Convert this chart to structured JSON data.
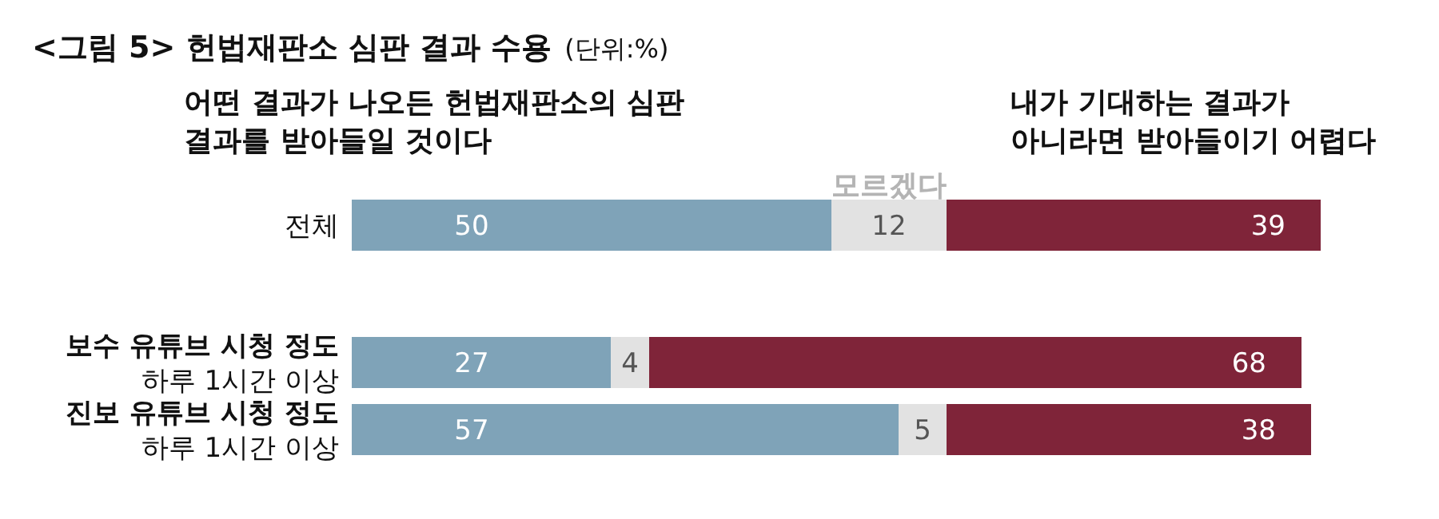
{
  "chart_data": {
    "type": "bar",
    "orientation": "horizontal",
    "stacked": true,
    "title": "<그림 5> 헌법재판소 심판 결과 수용",
    "subtitle": "(단위:%)",
    "categories": [
      "전체",
      "보수 유튜브 시청 정도\n하루 1시간 이상",
      "진보 유튜브 시청 정도\n하루 1시간 이상"
    ],
    "series": [
      {
        "name": "어떤 결과가 나오든 헌법재판소의 심판\n결과를 받아들일 것이다",
        "color": "#7fa3b8",
        "values": [
          50,
          27,
          57
        ]
      },
      {
        "name": "모르겠다",
        "color": "#e2e2e2",
        "values": [
          12,
          4,
          5
        ]
      },
      {
        "name": "내가 기대하는 결과가\n아니라면 받아들이기 어렵다",
        "color": "#7f2439",
        "values": [
          39,
          68,
          38
        ]
      }
    ],
    "xlim": [
      0,
      101
    ],
    "tick_labels": "y",
    "legend": "top",
    "data_labels": true
  }
}
